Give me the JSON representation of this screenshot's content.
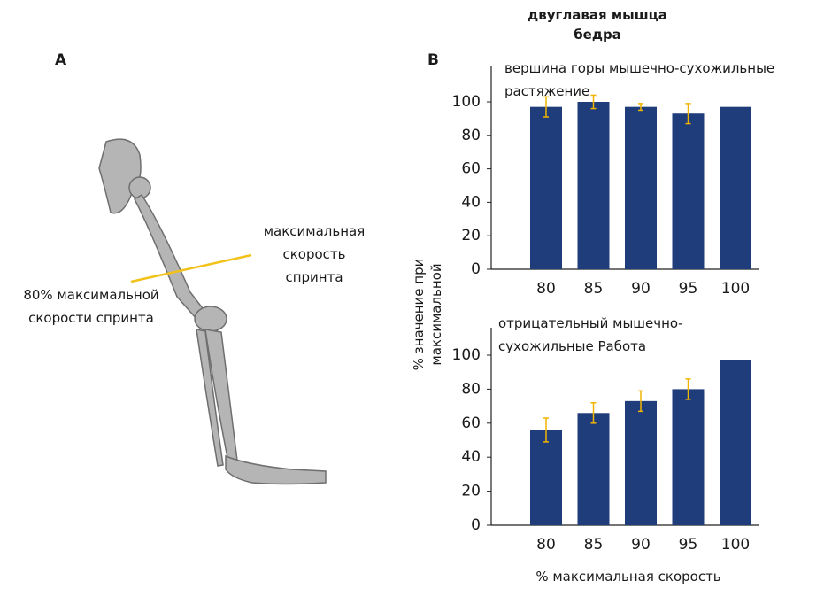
{
  "panel_a": {
    "label": "A",
    "annotations": [
      "максимальная скорость спринта",
      "80% максимальной скорости спринта"
    ]
  },
  "panel_b": {
    "label": "B",
    "title": "двуглавая мышца бедра",
    "y_label": "% значение при максимальной",
    "x_label": "% максимальная скорость"
  },
  "chart_data": [
    {
      "type": "bar",
      "title": "вершина горы мышечно-сухожильные растяжение",
      "categories": [
        "80",
        "85",
        "90",
        "95",
        "100"
      ],
      "values": [
        97,
        100,
        97,
        93,
        97
      ],
      "errors": [
        6,
        4,
        2,
        6,
        null
      ],
      "color": "#1f3d7a",
      "error_color": "#f0b400",
      "ylim": [
        0,
        100
      ],
      "yticks": [
        0,
        20,
        40,
        60,
        80,
        100
      ]
    },
    {
      "type": "bar",
      "title": "отрицательный мышечно-сухожильные Работа",
      "categories": [
        "80",
        "85",
        "90",
        "95",
        "100"
      ],
      "values": [
        56,
        66,
        73,
        80,
        97
      ],
      "errors": [
        7,
        6,
        6,
        6,
        null
      ],
      "color": "#1f3d7a",
      "error_color": "#f0b400",
      "ylim": [
        0,
        100
      ],
      "yticks": [
        0,
        20,
        40,
        60,
        80,
        100
      ]
    }
  ]
}
